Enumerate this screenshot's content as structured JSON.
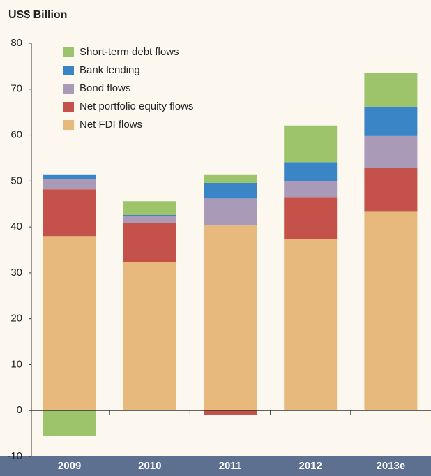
{
  "chart_data": {
    "type": "stacked_bar",
    "ylabel": "US$ Billion",
    "categories": [
      "2009",
      "2010",
      "2011",
      "2012",
      "2013e"
    ],
    "series": [
      {
        "name": "Net FDI flows",
        "color": "#e8b97c",
        "values": [
          38.0,
          32.4,
          40.3,
          37.3,
          43.3
        ]
      },
      {
        "name": "Net portfolio equity flows",
        "color": "#c4514a",
        "values": [
          10.2,
          8.4,
          -1.0,
          9.2,
          9.5
        ]
      },
      {
        "name": "Bond flows",
        "color": "#a99bb8",
        "values": [
          2.3,
          1.5,
          5.9,
          3.5,
          7.0
        ]
      },
      {
        "name": "Bank lending",
        "color": "#3a85c6",
        "values": [
          0.8,
          0.3,
          3.4,
          4.1,
          6.4
        ]
      },
      {
        "name": "Short-term debt flows",
        "color": "#9dc36b",
        "values": [
          -5.5,
          3.0,
          1.7,
          8.0,
          7.3
        ]
      }
    ],
    "ylim": [
      -10,
      80
    ],
    "yticks": [
      -10,
      0,
      10,
      20,
      30,
      40,
      50,
      60,
      70,
      80
    ]
  }
}
